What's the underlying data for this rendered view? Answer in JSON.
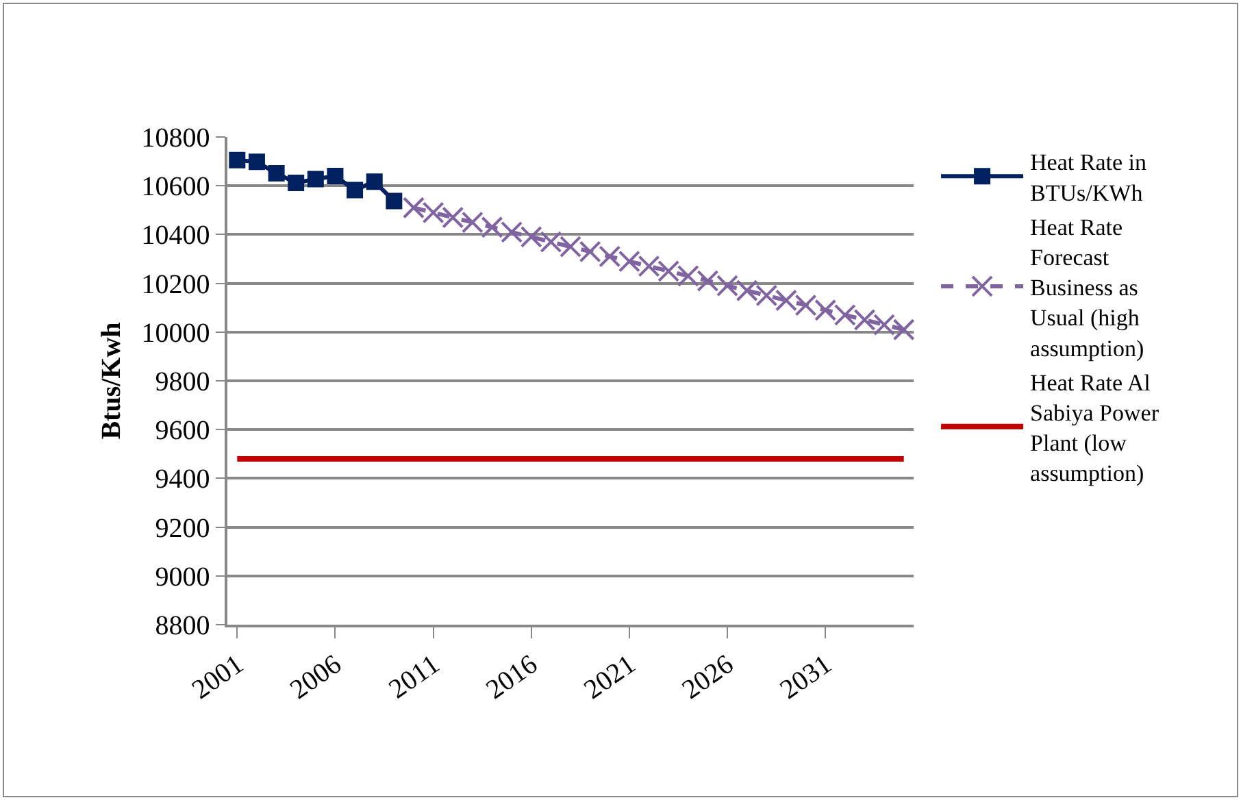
{
  "chart_data": {
    "type": "line",
    "ylabel": "Btus/Kwh",
    "categories": [
      "2001",
      null,
      null,
      null,
      null,
      "2006",
      null,
      null,
      null,
      null,
      "2011",
      null,
      null,
      null,
      null,
      "2016",
      null,
      null,
      null,
      null,
      "2021",
      null,
      null,
      null,
      null,
      "2026",
      null,
      null,
      null,
      null,
      "2031",
      null,
      null,
      null,
      null
    ],
    "series": [
      {
        "name": "Heat Rate in BTUs/KWh",
        "color": "#002060",
        "marker": "square",
        "line_style": "solid",
        "values": [
          10705,
          10698,
          10651,
          10612,
          10627,
          10640,
          10582,
          10617,
          10537,
          null,
          null,
          null,
          null,
          null,
          null,
          null,
          null,
          null,
          null,
          null,
          null,
          null,
          null,
          null,
          null,
          null,
          null,
          null,
          null,
          null,
          null,
          null,
          null,
          null,
          null
        ]
      },
      {
        "name": "Heat Rate Forecast Business as Usual (high assumption)",
        "color": "#8064a2",
        "marker": "cross",
        "line_style": "dashed",
        "values": [
          null,
          null,
          null,
          null,
          null,
          null,
          null,
          null,
          null,
          10510,
          10490,
          10470,
          10450,
          10430,
          10410,
          10390,
          10370,
          10350,
          10330,
          10310,
          10290,
          10270,
          10250,
          10230,
          10210,
          10190,
          10170,
          10150,
          10130,
          10110,
          10090,
          10070,
          10050,
          10030,
          10010
        ]
      },
      {
        "name": "Heat Rate Al Sabiya Power Plant (low assumption)",
        "color": "#c00000",
        "marker": "none",
        "line_style": "solid",
        "values": [
          9480,
          9480,
          9480,
          9480,
          9480,
          9480,
          9480,
          9480,
          9480,
          9480,
          9480,
          9480,
          9480,
          9480,
          9480,
          9480,
          9480,
          9480,
          9480,
          9480,
          9480,
          9480,
          9480,
          9480,
          9480,
          9480,
          9480,
          9480,
          9480,
          9480,
          9480,
          9480,
          9480,
          9480,
          9480
        ]
      }
    ],
    "ylim": [
      8800,
      10800
    ],
    "yticks": [
      8800,
      9000,
      9200,
      9400,
      9600,
      9800,
      10000,
      10200,
      10400,
      10600,
      10800
    ],
    "grid": "y",
    "legend": "right"
  }
}
